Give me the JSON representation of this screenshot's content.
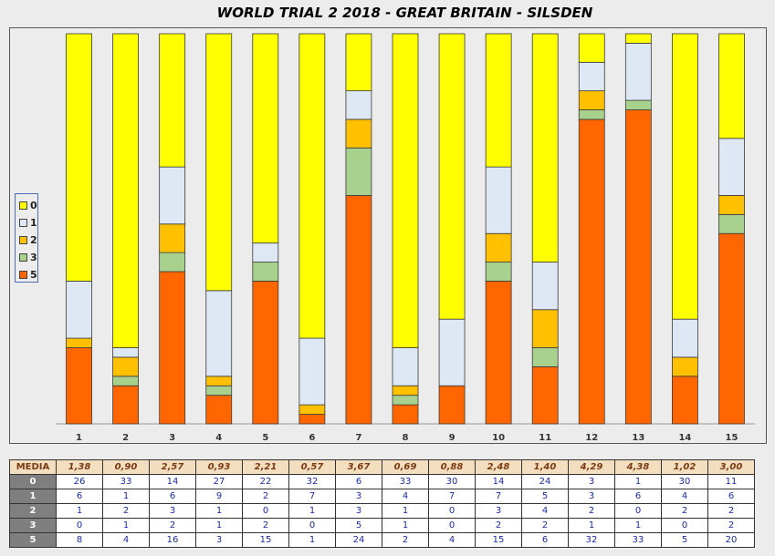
{
  "chart_data": {
    "type": "bar",
    "stacked": true,
    "normalized": true,
    "title": "WORLD TRIAL 2 2018 - GREAT BRITAIN - SILSDEN",
    "categories": [
      "1",
      "2",
      "3",
      "4",
      "5",
      "6",
      "7",
      "8",
      "9",
      "10",
      "11",
      "12",
      "13",
      "14",
      "15"
    ],
    "series": [
      {
        "name": "5",
        "color": "#ff6600",
        "values": [
          8,
          4,
          16,
          3,
          15,
          1,
          24,
          2,
          4,
          15,
          6,
          32,
          33,
          5,
          20
        ]
      },
      {
        "name": "3",
        "color": "#a9d18e",
        "values": [
          0,
          1,
          2,
          1,
          2,
          0,
          5,
          1,
          0,
          2,
          2,
          1,
          1,
          0,
          2
        ]
      },
      {
        "name": "2",
        "color": "#ffc000",
        "values": [
          1,
          2,
          3,
          1,
          0,
          1,
          3,
          1,
          0,
          3,
          4,
          2,
          0,
          2,
          2
        ]
      },
      {
        "name": "1",
        "color": "#dde8f4",
        "values": [
          6,
          1,
          6,
          9,
          2,
          7,
          3,
          4,
          7,
          7,
          5,
          3,
          6,
          4,
          6
        ]
      },
      {
        "name": "0",
        "color": "#ffff00",
        "values": [
          26,
          33,
          14,
          27,
          22,
          32,
          6,
          33,
          30,
          14,
          24,
          3,
          1,
          30,
          11
        ]
      }
    ],
    "legend_order": [
      "0",
      "1",
      "2",
      "3",
      "5"
    ],
    "legend_position": "left"
  },
  "table": {
    "media_label": "MEDIA",
    "media": [
      "1,38",
      "0,90",
      "2,57",
      "0,93",
      "2,21",
      "0,57",
      "3,67",
      "0,69",
      "0,88",
      "2,48",
      "1,40",
      "4,29",
      "4,38",
      "1,02",
      "3,00"
    ],
    "rows": [
      {
        "label": "0",
        "values": [
          "26",
          "33",
          "14",
          "27",
          "22",
          "32",
          "6",
          "33",
          "30",
          "14",
          "24",
          "3",
          "1",
          "30",
          "11"
        ]
      },
      {
        "label": "1",
        "values": [
          "6",
          "1",
          "6",
          "9",
          "2",
          "7",
          "3",
          "4",
          "7",
          "7",
          "5",
          "3",
          "6",
          "4",
          "6"
        ]
      },
      {
        "label": "2",
        "values": [
          "1",
          "2",
          "3",
          "1",
          "0",
          "1",
          "3",
          "1",
          "0",
          "3",
          "4",
          "2",
          "0",
          "2",
          "2"
        ]
      },
      {
        "label": "3",
        "values": [
          "0",
          "1",
          "2",
          "1",
          "2",
          "0",
          "5",
          "1",
          "0",
          "2",
          "2",
          "1",
          "1",
          "0",
          "2"
        ]
      },
      {
        "label": "5",
        "values": [
          "8",
          "4",
          "16",
          "3",
          "15",
          "1",
          "24",
          "2",
          "4",
          "15",
          "6",
          "32",
          "33",
          "5",
          "20"
        ]
      }
    ]
  }
}
